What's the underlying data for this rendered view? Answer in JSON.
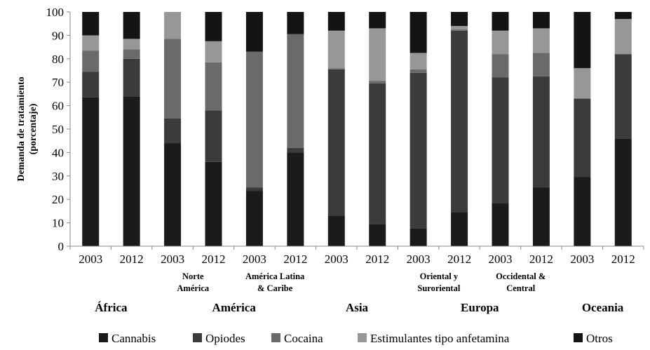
{
  "chart_data": {
    "type": "bar",
    "stacked": true,
    "ylabel_lines": [
      "Demanda de tratamiento",
      "(porcentaje)"
    ],
    "ylim": [
      0,
      100
    ],
    "yticks": [
      0,
      10,
      20,
      30,
      40,
      50,
      60,
      70,
      80,
      90,
      100
    ],
    "categories": [
      "2003",
      "2012",
      "2003",
      "2012",
      "2003",
      "2012",
      "2003",
      "2012",
      "2003",
      "2012",
      "2003",
      "2012",
      "2003",
      "2012"
    ],
    "subgroups": [
      {
        "lines": [
          "Norte",
          "América"
        ],
        "bars": [
          2,
          3
        ]
      },
      {
        "lines": [
          "América Latina",
          "& Caribe"
        ],
        "bars": [
          4,
          5
        ]
      },
      {
        "lines": [
          "Oriental y",
          "Suroriental"
        ],
        "bars": [
          8,
          9
        ]
      },
      {
        "lines": [
          "Occidental &",
          "Central"
        ],
        "bars": [
          10,
          11
        ]
      }
    ],
    "groups": [
      {
        "label": "África",
        "bars": [
          0,
          1
        ]
      },
      {
        "label": "América",
        "bars": [
          2,
          5
        ]
      },
      {
        "label": "Asia",
        "bars": [
          6,
          7
        ]
      },
      {
        "label": "Europa",
        "bars": [
          8,
          11
        ]
      },
      {
        "label": "Oceania",
        "bars": [
          12,
          13
        ]
      }
    ],
    "series": [
      {
        "name": "Cannabis",
        "color": "#1b1b1b",
        "values": [
          63.5,
          64,
          44,
          36,
          23.5,
          40,
          13,
          9.5,
          7.5,
          14.5,
          18.5,
          25,
          29.5,
          46
        ]
      },
      {
        "name": "Opiodes",
        "color": "#3b3b3b",
        "values": [
          11,
          16,
          10.5,
          22,
          1.5,
          2,
          62.5,
          60,
          66.5,
          77.5,
          53.5,
          47.5,
          33.5,
          36
        ]
      },
      {
        "name": "Cocaina",
        "color": "#6a6a6a",
        "values": [
          9,
          4,
          34,
          20.5,
          58,
          48.5,
          0.5,
          1,
          1.5,
          0.5,
          10,
          10,
          0,
          0
        ]
      },
      {
        "name": "Estimulantes tipo anfetamina",
        "color": "#979797",
        "values": [
          6.5,
          4.5,
          11.5,
          9,
          0,
          0,
          16,
          22.5,
          7,
          1.5,
          10,
          10.5,
          13,
          15
        ]
      },
      {
        "name": "Otros",
        "color": "#141414",
        "values": [
          10,
          11.5,
          0,
          12.5,
          17,
          9.5,
          8,
          7,
          17.5,
          6,
          8,
          7,
          24,
          3
        ]
      }
    ],
    "legend_position": "bottom",
    "grid": false
  }
}
